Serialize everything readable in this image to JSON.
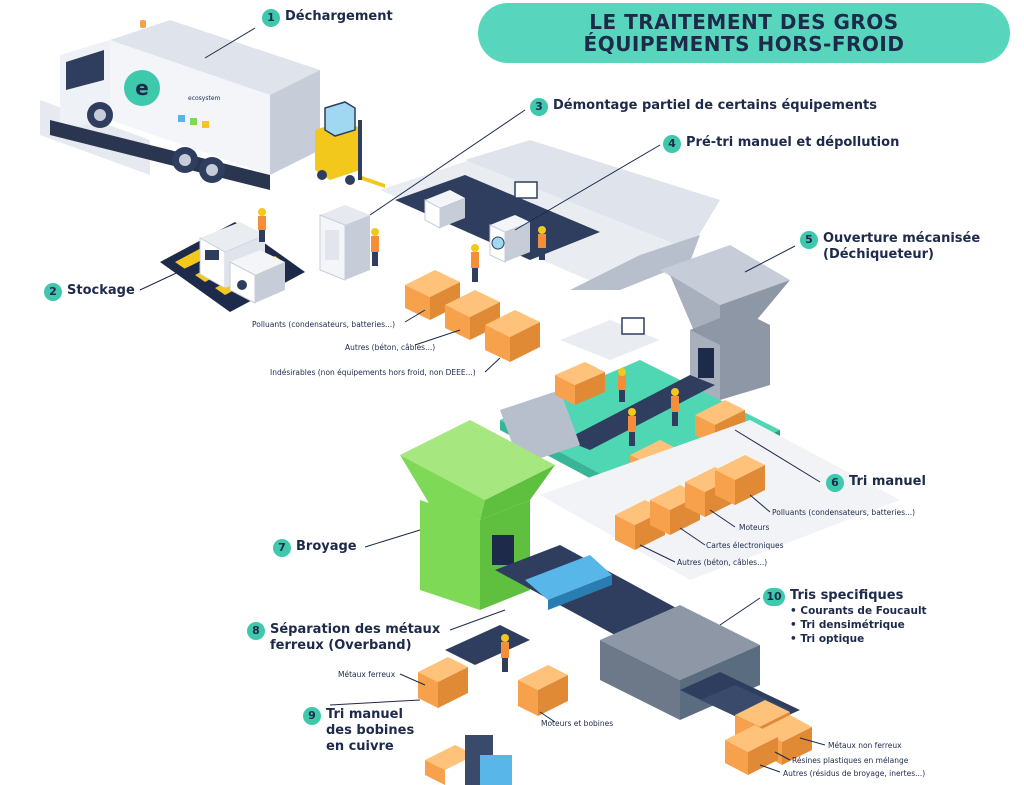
{
  "title": {
    "line1": "LE TRAITEMENT DES GROS",
    "line2": "ÉQUIPEMENTS HORS-FROID"
  },
  "truck": {
    "logo_text": "ecosystem"
  },
  "steps": [
    {
      "number": "1",
      "label": "Déchargement"
    },
    {
      "number": "2",
      "label": "Stockage"
    },
    {
      "number": "3",
      "label": "Démontage partiel de certains équipements"
    },
    {
      "number": "4",
      "label": "Pré-tri manuel et dépollution"
    },
    {
      "number": "5",
      "label": "Ouverture mécanisée",
      "label2": "(Déchiqueteur)"
    },
    {
      "number": "6",
      "label": "Tri manuel"
    },
    {
      "number": "7",
      "label": "Broyage"
    },
    {
      "number": "8",
      "label": "Séparation des métaux",
      "label2": "ferreux (Overband)"
    },
    {
      "number": "9",
      "label": "Tri manuel",
      "label2": "des bobines",
      "label3": "en cuivre"
    },
    {
      "number": "10",
      "label": "Tris specifiques",
      "bullets": [
        "Courants de Foucault",
        "Tri densimétrique",
        "Tri optique"
      ]
    }
  ],
  "outputs": {
    "pretri": [
      "Polluants (condensateurs, batteries...)",
      "Autres (béton, câbles...)",
      "Indésirables (non équipements hors froid, non DEEE...)"
    ],
    "tri_manuel": [
      "Polluants (condensateurs, batteries...)",
      "Moteurs",
      "Cartes électroniques",
      "Autres (béton, câbles...)"
    ],
    "overband": [
      "Métaux ferreux",
      "Moteurs et bobines"
    ],
    "tris_specifiques": [
      "Métaux non ferreux",
      "Résines plastiques en mélange",
      "Autres (résidus de broyage, inertes...)"
    ]
  },
  "colors": {
    "title_bg": "#58d6bd",
    "badge": "#3ec8ac",
    "text": "#1d2a4a",
    "bin": "#f7a14d",
    "hopper_green": "#7ed957",
    "platform_teal": "#4fd6b3",
    "machine_gray": "#5a6c80",
    "conveyor": "#2f3e5e",
    "overband_blue": "#58b7e8",
    "worker_vest": "#f58e3a",
    "helmet": "#f2c81c"
  }
}
